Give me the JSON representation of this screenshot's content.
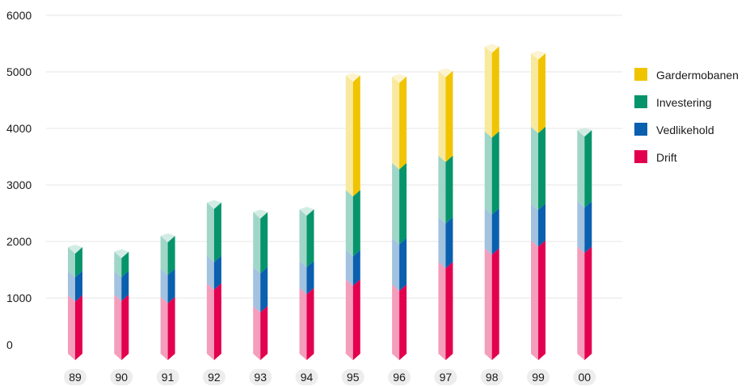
{
  "chart_data": {
    "type": "bar",
    "stacked": true,
    "categories": [
      "89",
      "90",
      "91",
      "92",
      "93",
      "94",
      "95",
      "96",
      "97",
      "98",
      "99",
      "00"
    ],
    "yticks": [
      0,
      1000,
      2000,
      3000,
      4000,
      5000,
      6000
    ],
    "ylim": [
      0,
      6000
    ],
    "grid": true,
    "legend_position": "right",
    "series": [
      {
        "name": "Drift",
        "color": "#e2004f",
        "values": [
          950,
          960,
          920,
          1160,
          760,
          1080,
          1230,
          1140,
          1540,
          1780,
          1920,
          1810
        ]
      },
      {
        "name": "Vedlikehold",
        "color": "#0a5fae",
        "values": [
          430,
          420,
          500,
          490,
          690,
          480,
          520,
          820,
          790,
          710,
          650,
          800
        ]
      },
      {
        "name": "Investering",
        "color": "#06946b",
        "values": [
          420,
          340,
          580,
          940,
          970,
          910,
          1060,
          1330,
          1090,
          1360,
          1360,
          1260
        ]
      },
      {
        "name": "Gardermobanen",
        "color": "#f0c400",
        "values": [
          0,
          0,
          0,
          0,
          0,
          0,
          2030,
          1530,
          1500,
          1500,
          1300,
          0
        ]
      }
    ]
  }
}
